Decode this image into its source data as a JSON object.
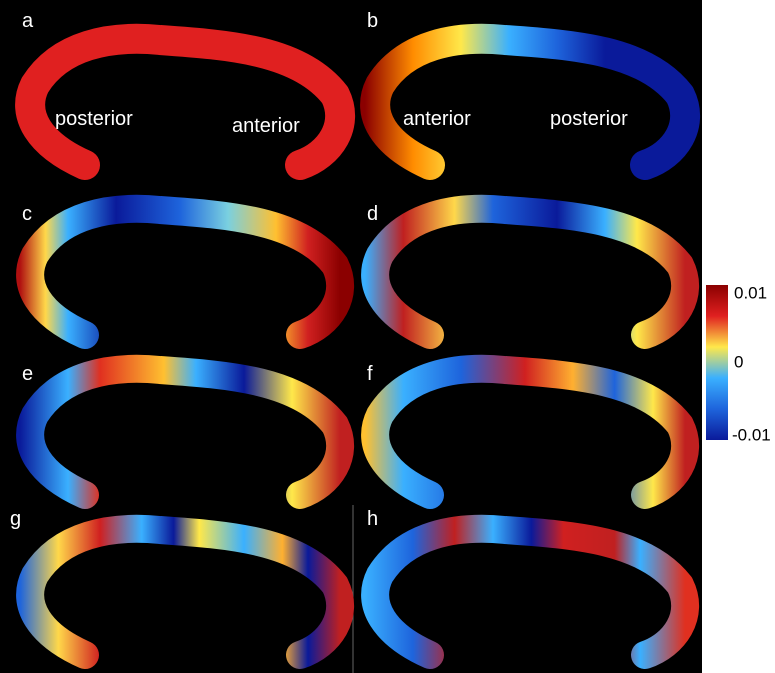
{
  "panels": [
    {
      "label": "a",
      "annotations": [
        "posterior",
        "anterior"
      ]
    },
    {
      "label": "b",
      "annotations": [
        "anterior",
        "posterior"
      ]
    },
    {
      "label": "c"
    },
    {
      "label": "d"
    },
    {
      "label": "e"
    },
    {
      "label": "f"
    },
    {
      "label": "g"
    },
    {
      "label": "h"
    }
  ],
  "colorbar": {
    "labels": [
      "0.01",
      "0",
      "-0.01"
    ]
  }
}
